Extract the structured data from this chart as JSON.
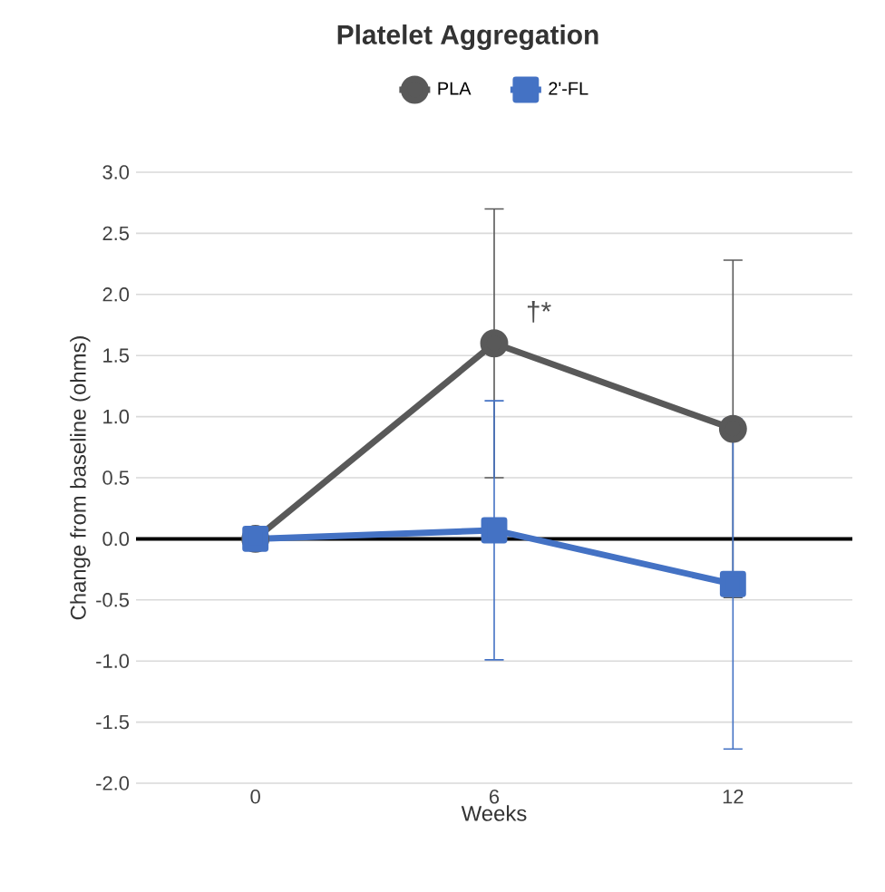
{
  "chart_data": {
    "type": "line",
    "title": "Platelet Aggregation",
    "xlabel": "Weeks",
    "ylabel": "Change from baseline (ohms)",
    "categories": [
      "0",
      "6",
      "12"
    ],
    "series": [
      {
        "name": "PLA",
        "color": "#595959",
        "marker": "circle",
        "values": [
          0,
          1.6,
          0.9
        ],
        "errors": [
          null,
          1.1,
          1.38
        ]
      },
      {
        "name": "2'-FL",
        "color": "#4472c4",
        "marker": "square",
        "values": [
          0,
          0.07,
          -0.37
        ],
        "errors": [
          null,
          1.06,
          1.35
        ]
      }
    ],
    "ylim": [
      -2,
      3
    ],
    "yticks": [
      {
        "value": -2,
        "label": "-2.0"
      },
      {
        "value": -1.5,
        "label": "-1.5"
      },
      {
        "value": -1,
        "label": "-1.0"
      },
      {
        "value": -0.5,
        "label": "-0.5"
      },
      {
        "value": 0,
        "label": "0.0"
      },
      {
        "value": 0.5,
        "label": "0.5"
      },
      {
        "value": 1,
        "label": "1.0"
      },
      {
        "value": 1.5,
        "label": "1.5"
      },
      {
        "value": 2,
        "label": "2.0"
      },
      {
        "value": 2.5,
        "label": "2.5"
      },
      {
        "value": 3,
        "label": "3.0"
      }
    ],
    "ref_lines": [
      {
        "axis": "y",
        "value": 0,
        "color": "#000000"
      }
    ],
    "annotations": [
      {
        "text": "†*",
        "x": "6",
        "y": 1.6
      }
    ],
    "grid": "y",
    "legend": "top",
    "line_style": "solid"
  }
}
